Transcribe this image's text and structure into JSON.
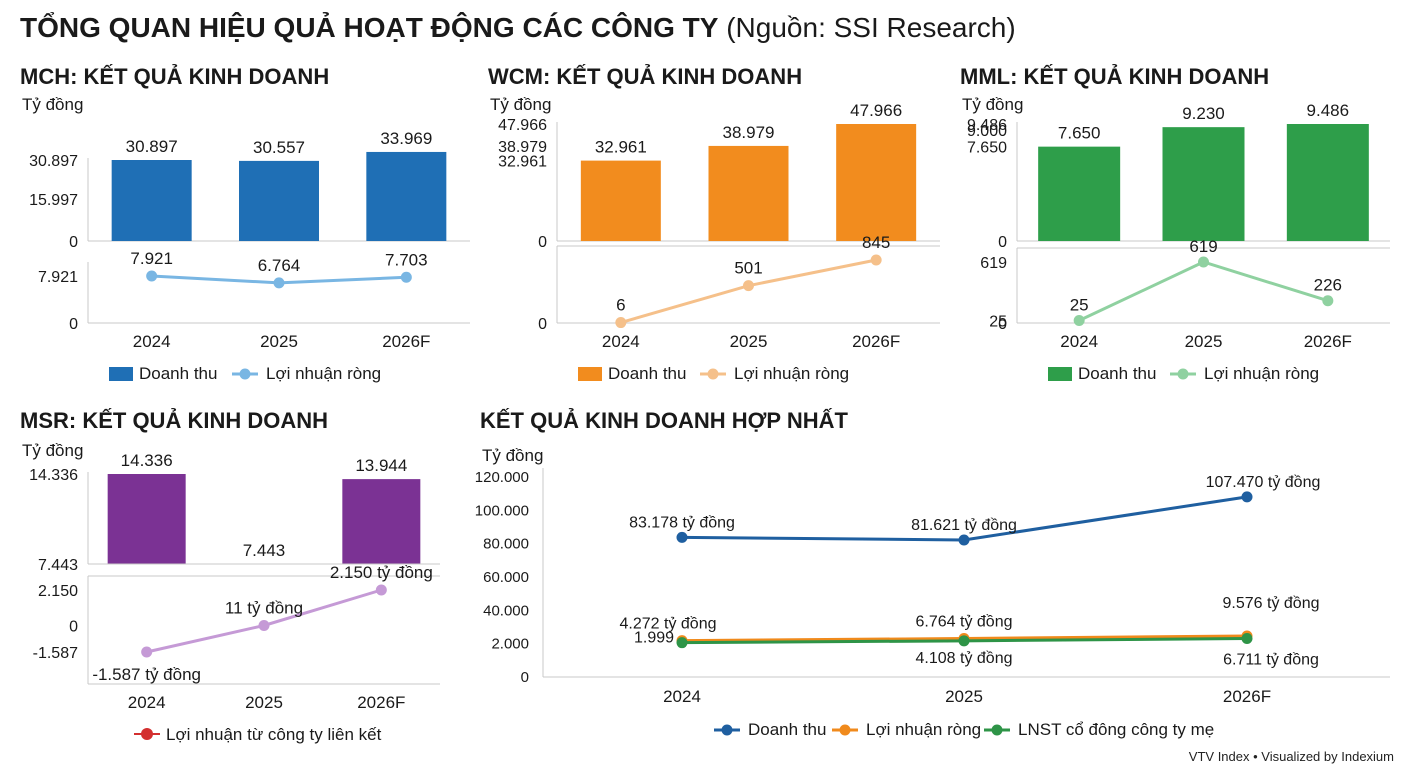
{
  "header": {
    "title": "TỔNG QUAN HIỆU QUẢ HOẠT ĐỘNG CÁC CÔNG TY",
    "source": "(Nguồn: SSI Research)"
  },
  "footer": {
    "note": "VTV Index • Visualized by Indexium"
  },
  "colors": {
    "mch": "#1f6fb5",
    "mch_line": "#79b6e3",
    "wcm": "#f28c1e",
    "wcm_line": "#f5c08a",
    "mml": "#2e9e4a",
    "mml_line": "#8fd1a0",
    "msr": "#7b3294",
    "msr_line": "#c59ad6",
    "msr_legend": "#d32f2f",
    "total_rev": "#1f5fa0",
    "total_np": "#f08a1c",
    "total_parent": "#2e9447",
    "grid": "#c8c8c8"
  },
  "chart_data": [
    {
      "id": "mch",
      "type": "bar+line",
      "title": "MCH: KẾT QUẢ KINH DOANH",
      "unit": "Tỷ đồng",
      "categories": [
        "2024",
        "2025",
        "2026F"
      ],
      "bar_series": {
        "name": "Doanh thu",
        "values": [
          30897,
          30557,
          33969
        ],
        "labels": [
          "30.897",
          "30.557",
          "33.969"
        ]
      },
      "bar_ticks": [
        "0",
        "15.997",
        "30.897"
      ],
      "line_series": {
        "name": "Lợi nhuận ròng",
        "values": [
          7921,
          6764,
          7703
        ],
        "labels": [
          "7.921",
          "6.764",
          "7.703"
        ]
      },
      "line_ticks": [
        "0",
        "7.921"
      ]
    },
    {
      "id": "wcm",
      "type": "bar+line",
      "title": "WCM: KẾT QUẢ KINH DOANH",
      "unit": "Tỷ đồng",
      "categories": [
        "2024",
        "2025",
        "2026F"
      ],
      "bar_series": {
        "name": "Doanh thu",
        "values": [
          32961,
          38979,
          47966
        ],
        "labels": [
          "32.961",
          "38.979",
          "47.966"
        ]
      },
      "bar_ticks": [
        "0",
        "32.961",
        "38.979",
        "47.966"
      ],
      "line_series": {
        "name": "Lợi nhuận ròng",
        "values": [
          6,
          501,
          845
        ],
        "labels": [
          "6",
          "501",
          "845"
        ]
      },
      "line_ticks": [
        "0"
      ]
    },
    {
      "id": "mml",
      "type": "bar+line",
      "title": "MML: KẾT QUẢ KINH DOANH",
      "unit": "Tỷ đồng",
      "categories": [
        "2024",
        "2025",
        "2026F"
      ],
      "bar_series": {
        "name": "Doanh thu",
        "values": [
          7650,
          9230,
          9486
        ],
        "labels": [
          "7.650",
          "9.230",
          "9.486"
        ]
      },
      "bar_ticks": [
        "0",
        "7.650",
        "9.000",
        "9.486"
      ],
      "line_series": {
        "name": "Lợi nhuận ròng",
        "values": [
          25,
          619,
          226
        ],
        "labels": [
          "25",
          "619",
          "226"
        ]
      },
      "line_ticks": [
        "0",
        "25",
        "619"
      ]
    },
    {
      "id": "msr",
      "type": "bar+line",
      "title": "MSR: KẾT QUẢ KINH DOANH",
      "unit": "Tỷ đồng",
      "categories": [
        "2024",
        "2025",
        "2026F"
      ],
      "bar_series": {
        "values": [
          14336,
          7443,
          13944
        ],
        "labels": [
          "14.336",
          "7.443",
          "13.944"
        ]
      },
      "bar_ticks": [
        "7.443",
        "14.336"
      ],
      "line_series": {
        "name": "Lợi nhuận từ công ty liên kết",
        "values": [
          -1587,
          11,
          2150
        ],
        "labels": [
          "-1.587 tỷ đồng",
          "11 tỷ đồng",
          "2.150 tỷ đồng"
        ]
      },
      "line_ticks": [
        "-1.587",
        "0",
        "2.150"
      ]
    },
    {
      "id": "total",
      "type": "line",
      "title": "KẾT QUẢ KINH DOANH HỢP NHẤT",
      "unit": "Tỷ đồng",
      "categories": [
        "2024",
        "2025",
        "2026F"
      ],
      "y_ticks": [
        "0",
        "2.000",
        "40.000",
        "60.000",
        "80.000",
        "100.000",
        "120.000"
      ],
      "series": [
        {
          "name": "Doanh thu",
          "values": [
            83178,
            81621,
            107470
          ],
          "labels": [
            "83.178 tỷ đồng",
            "81.621 tỷ đồng",
            "107.470 tỷ đồng"
          ]
        },
        {
          "name": "Lợi nhuận ròng",
          "values": [
            4272,
            6764,
            9576
          ],
          "labels": [
            "4.272 tỷ đồng",
            "6.764 tỷ đồng",
            "9.576 tỷ đồng"
          ]
        },
        {
          "name": "LNST cổ đông công ty mẹ",
          "values": [
            1999,
            4108,
            6711
          ],
          "labels": [
            "1.999",
            "4.108 tỷ đồng",
            "6.711 tỷ đồng"
          ]
        }
      ]
    }
  ]
}
